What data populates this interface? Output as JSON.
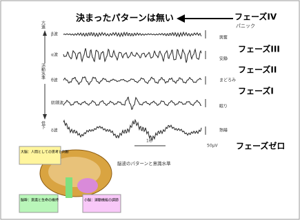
{
  "header": {
    "title": "決まったパターンは無い"
  },
  "phases": [
    {
      "label": "フェーズIV",
      "note": "パニック"
    },
    {
      "label": "フェーズIII"
    },
    {
      "label": "フェーズII"
    },
    {
      "label": "フェーズI"
    },
    {
      "label": "フェーズゼロ"
    }
  ],
  "axis": {
    "top": "亢進",
    "middle": "活動水準",
    "bottom": "低下"
  },
  "waves": [
    {
      "name": "β波",
      "state": "興奮"
    },
    {
      "name": "α波",
      "state": "安静"
    },
    {
      "name": "θ波",
      "state": "まどろみ"
    },
    {
      "name": "紡錘波",
      "state": "眠り"
    },
    {
      "name": "δ波",
      "state": "熟睡"
    }
  ],
  "scale": {
    "time": "1秒",
    "amplitude": "50μV"
  },
  "caption": "脳波のパターンと意識水準",
  "brain": {
    "cerebrum": "大脳：人間としての思考と判断",
    "brainstem": "脳幹：意識と生命の維持",
    "cerebellum": "小脳：運動機能の調節"
  }
}
